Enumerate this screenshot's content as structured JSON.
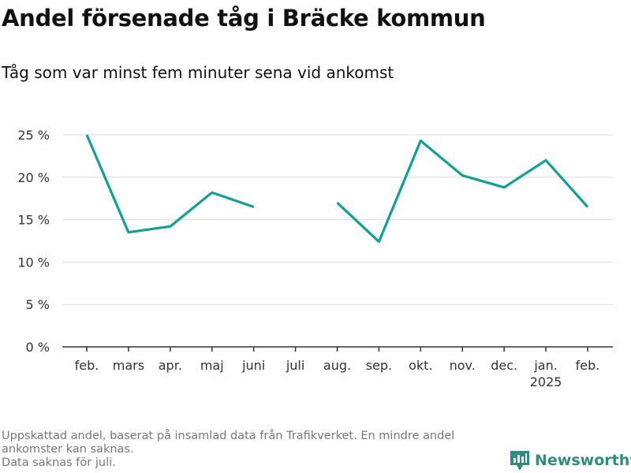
{
  "title": "Andel försenade tåg i Bräcke kommun",
  "subtitle": "Tåg som var minst fem minuter sena vid ankomst",
  "footnote": {
    "line1": "Uppskattad andel, baserat på insamlad data från Trafikverket. En mindre andel",
    "line2": "ankomster kan saknas.",
    "line3": "Data saknas för juli."
  },
  "brand": {
    "name": "Newsworthy",
    "icon": "newsworthy-logo-icon",
    "color": "#2e8d7f"
  },
  "chart_data": {
    "type": "line",
    "categories": [
      "feb.",
      "mars",
      "apr.",
      "maj",
      "juni",
      "juli",
      "aug.",
      "sep.",
      "okt.",
      "nov.",
      "dec.",
      "jan.",
      "feb."
    ],
    "category_sublabels": [
      "",
      "",
      "",
      "",
      "",
      "",
      "",
      "",
      "",
      "",
      "",
      "2025",
      ""
    ],
    "series": [
      {
        "values": [
          25.0,
          13.5,
          14.2,
          18.2,
          16.5,
          null,
          17.0,
          12.4,
          24.3,
          20.2,
          18.8,
          22.0,
          16.5
        ],
        "color": "#12a095"
      }
    ],
    "ylim": [
      0,
      25
    ],
    "yticks": [
      0,
      5,
      10,
      15,
      20,
      25
    ],
    "ytick_labels": [
      "0 %",
      "5 %",
      "10 %",
      "15 %",
      "20 %",
      "25 %"
    ],
    "grid": true,
    "legend": "none"
  }
}
